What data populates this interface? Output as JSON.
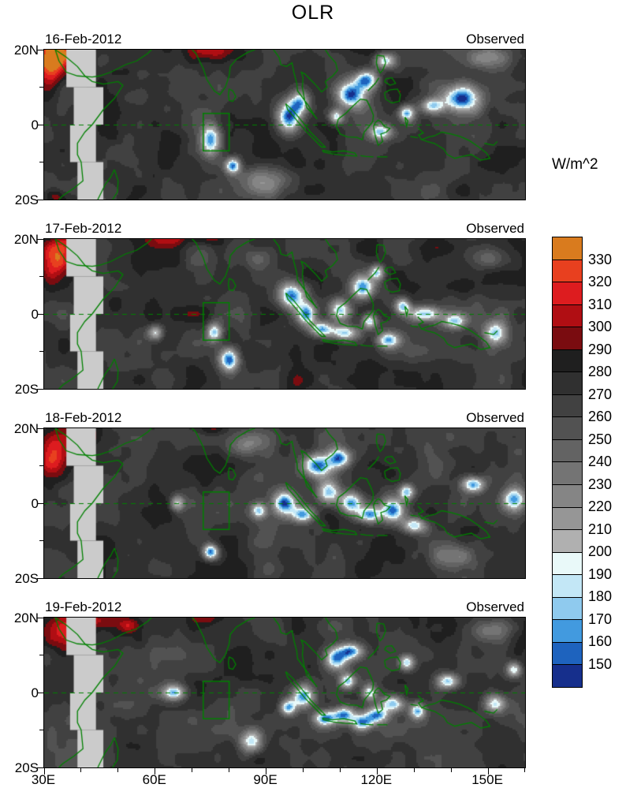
{
  "title": "OLR",
  "chart_data": {
    "type": "heatmap",
    "variable": "OLR (Outgoing Longwave Radiation), filled contour maps",
    "unit": "W/m^2",
    "lon_range": [
      30,
      160
    ],
    "lat_range": [
      -20,
      20
    ],
    "x_ticks": [
      {
        "lon": 30,
        "label": "30E"
      },
      {
        "lon": 60,
        "label": "60E"
      },
      {
        "lon": 90,
        "label": "90E"
      },
      {
        "lon": 120,
        "label": "120E"
      },
      {
        "lon": 150,
        "label": "150E"
      }
    ],
    "y_ticks": [
      {
        "lat": 20,
        "label": "20N"
      },
      {
        "lat": 0,
        "label": "0"
      },
      {
        "lat": -20,
        "label": "20S"
      }
    ],
    "minor_tick_step_deg": 10,
    "colorbar": {
      "title": "W/m^2",
      "boundary_labels_top_to_bottom": [
        "330",
        "320",
        "310",
        "300",
        "290",
        "280",
        "270",
        "260",
        "250",
        "240",
        "230",
        "220",
        "210",
        "200",
        "190",
        "180",
        "170",
        "160",
        "150"
      ],
      "band_colors_top_to_bottom": [
        "#d97b1e",
        "#e8401f",
        "#dd1c1f",
        "#b00e13",
        "#7a0c10",
        "#1f1f1f",
        "#303030",
        "#414141",
        "#525252",
        "#636363",
        "#747474",
        "#858585",
        "#969696",
        "#b0b0b0",
        "#e9f9f9",
        "#c3e7f6",
        "#8fcaee",
        "#429adf",
        "#1e63be",
        "#162f8c"
      ],
      "band_meaning_top_to_bottom": [
        ">330",
        "320-330",
        "310-320",
        "300-310",
        "290-300",
        "280-290",
        "270-280",
        "260-270",
        "250-260",
        "240-250",
        "230-240",
        "220-230",
        "210-220",
        "200-210",
        "190-200",
        "180-190",
        "170-180",
        "160-170",
        "150-160",
        "<150"
      ]
    },
    "map_overlay": {
      "coast_color": "#008000",
      "equator_dashed": true,
      "roi_box": {
        "lon_min": 73,
        "lon_max": 80,
        "lat_min": -7,
        "lat_max": 3
      },
      "missing_data_color": "#cbcbcb",
      "missing_data_blocks": [
        {
          "lon": [
            36,
            44
          ],
          "lat": [
            10,
            20
          ]
        },
        {
          "lon": [
            38,
            46
          ],
          "lat": [
            0,
            10
          ]
        },
        {
          "lon": [
            37,
            44
          ],
          "lat": [
            -10,
            0
          ]
        },
        {
          "lon": [
            39,
            46
          ],
          "lat": [
            -20,
            -10
          ]
        }
      ]
    },
    "base_olr": 272,
    "feature_format": [
      "lon",
      "lat",
      "rlon",
      "rlat",
      "olr"
    ],
    "panels": [
      {
        "date": "16-Feb-2012",
        "source": "Observed",
        "seed": 3,
        "features": [
          [
            32,
            17,
            4,
            6,
            342
          ],
          [
            38,
            20,
            5,
            3,
            306
          ],
          [
            75,
            20,
            7,
            2.5,
            302
          ],
          [
            33,
            -19,
            3,
            2,
            300
          ],
          [
            75,
            -4,
            2.5,
            4,
            166
          ],
          [
            81,
            -11,
            2,
            2,
            160
          ],
          [
            96,
            2,
            3,
            4,
            150
          ],
          [
            99,
            6,
            2.5,
            3,
            168
          ],
          [
            113,
            8,
            4,
            3.5,
            148
          ],
          [
            117,
            12,
            3,
            2.5,
            162
          ],
          [
            109,
            2,
            2,
            2,
            178
          ],
          [
            121,
            -2,
            3,
            2,
            176
          ],
          [
            128,
            3,
            2,
            2,
            172
          ],
          [
            143,
            7,
            5,
            3.5,
            146
          ],
          [
            135,
            5,
            3,
            2,
            186
          ],
          [
            122,
            17,
            3,
            2,
            188
          ],
          [
            150,
            18,
            6,
            3,
            238
          ],
          [
            90,
            -15,
            6,
            4,
            220
          ]
        ]
      },
      {
        "date": "17-Feb-2012",
        "source": "Observed",
        "seed": 11,
        "features": [
          [
            33,
            15,
            4,
            5,
            330
          ],
          [
            37,
            19,
            4,
            3,
            305
          ],
          [
            63,
            20,
            5,
            2,
            298
          ],
          [
            74,
            20,
            5,
            2,
            300
          ],
          [
            80,
            -12,
            2.5,
            3,
            148
          ],
          [
            76,
            -5,
            2,
            2.5,
            176
          ],
          [
            97,
            5,
            3.5,
            3.5,
            148
          ],
          [
            101,
            0,
            2.5,
            3,
            162
          ],
          [
            105,
            -4,
            3,
            2,
            168
          ],
          [
            111,
            -5,
            4,
            2,
            170
          ],
          [
            110,
            1,
            3,
            3,
            172
          ],
          [
            116,
            7,
            3,
            3,
            160
          ],
          [
            120,
            11,
            2,
            2,
            176
          ],
          [
            118,
            -2,
            2,
            2,
            178
          ],
          [
            123,
            -7,
            3,
            2,
            172
          ],
          [
            127,
            2,
            2,
            2,
            178
          ],
          [
            133,
            0,
            4,
            2,
            174
          ],
          [
            141,
            -2,
            3,
            2,
            180
          ],
          [
            152,
            -5,
            3,
            3,
            184
          ],
          [
            60,
            -5,
            2,
            2,
            190
          ],
          [
            150,
            15,
            5,
            3,
            240
          ],
          [
            88,
            15,
            4,
            3,
            244
          ]
        ]
      },
      {
        "date": "18-Feb-2012",
        "source": "Observed",
        "seed": 23,
        "features": [
          [
            33,
            13,
            4,
            6,
            322
          ],
          [
            41,
            18,
            5,
            3,
            302
          ],
          [
            75,
            20,
            4,
            2,
            298
          ],
          [
            75,
            -13,
            2,
            2,
            152
          ],
          [
            95,
            0,
            3,
            3,
            158
          ],
          [
            104,
            10,
            4,
            3,
            150
          ],
          [
            110,
            12,
            3,
            2.5,
            160
          ],
          [
            100,
            -3,
            3,
            2,
            170
          ],
          [
            107,
            3,
            3,
            3,
            164
          ],
          [
            113,
            0,
            3,
            3,
            162
          ],
          [
            118,
            -3,
            3,
            2,
            170
          ],
          [
            124,
            -2,
            3,
            3,
            164
          ],
          [
            130,
            -6,
            3,
            2,
            176
          ],
          [
            128,
            3,
            2,
            2,
            178
          ],
          [
            146,
            5,
            3,
            2,
            166
          ],
          [
            157,
            1,
            3,
            3,
            168
          ],
          [
            88,
            -2,
            2,
            2,
            182
          ],
          [
            66,
            0,
            2,
            2,
            195
          ],
          [
            85,
            16,
            5,
            3,
            235
          ],
          [
            140,
            -14,
            6,
            3,
            228
          ]
        ]
      },
      {
        "date": "19-Feb-2012",
        "source": "Observed",
        "seed": 31,
        "features": [
          [
            36,
            16,
            5,
            5,
            318
          ],
          [
            45,
            19,
            5,
            2.5,
            302
          ],
          [
            53,
            18,
            3,
            2,
            296
          ],
          [
            74,
            20,
            4,
            2,
            294
          ],
          [
            65,
            0,
            3,
            2,
            174
          ],
          [
            100,
            -1,
            3,
            3,
            152
          ],
          [
            96,
            -4,
            2,
            2,
            168
          ],
          [
            109,
            9,
            3,
            3,
            156
          ],
          [
            113,
            11,
            3,
            2,
            168
          ],
          [
            106,
            -7,
            3,
            2,
            164
          ],
          [
            111,
            -6,
            3,
            2,
            162
          ],
          [
            116,
            -8,
            3,
            2,
            170
          ],
          [
            120,
            -6,
            3,
            2,
            166
          ],
          [
            118,
            0,
            2,
            2,
            180
          ],
          [
            124,
            -3,
            3,
            2,
            172
          ],
          [
            112,
            3,
            2,
            2,
            172
          ],
          [
            128,
            8,
            2,
            2,
            182
          ],
          [
            131,
            -5,
            2,
            2,
            176
          ],
          [
            139,
            3,
            3,
            2,
            174
          ],
          [
            152,
            -3,
            3,
            2.5,
            184
          ],
          [
            157,
            6,
            2,
            2,
            190
          ],
          [
            86,
            -13,
            3,
            3,
            186
          ],
          [
            150,
            16,
            5,
            3,
            238
          ]
        ]
      }
    ]
  }
}
